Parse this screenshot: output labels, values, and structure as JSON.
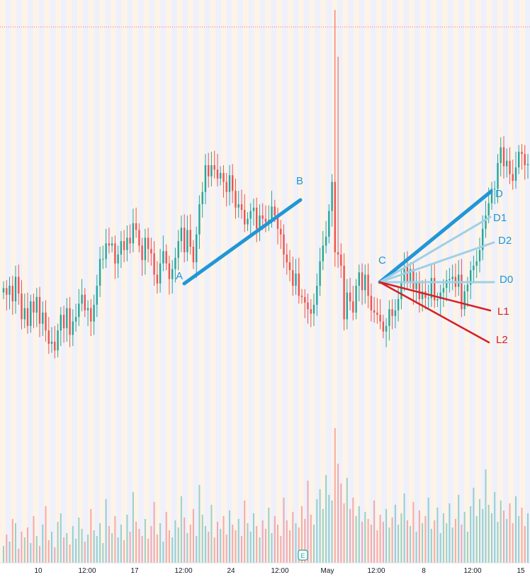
{
  "chart_data": {
    "type": "candlestick",
    "title": "",
    "xlabel": "",
    "ylabel": "",
    "x_ticks": [
      "10",
      "12:00",
      "17",
      "12:00",
      "24",
      "12:00",
      "May",
      "12:00",
      "8",
      "12:00",
      "15"
    ],
    "grid": true,
    "legend": "none",
    "earnings_marker": "E",
    "series": [
      {
        "values": [
          410,
          404,
          412,
          398,
          420,
          405,
          382,
          392,
          376,
          398,
          388,
          402,
          378,
          388,
          372,
          360,
          362,
          354,
          372,
          386,
          374,
          392,
          368,
          380,
          384,
          396,
          404,
          390,
          392,
          380,
          395,
          412,
          436,
          436,
          450,
          448,
          450,
          432,
          440,
          452,
          444,
          455,
          450,
          468,
          462,
          448,
          435,
          455,
          445,
          441,
          422,
          414,
          432,
          443,
          432,
          418,
          427,
          437,
          452,
          464,
          442,
          462,
          447,
          433,
          458,
          485,
          496,
          520,
          510,
          520,
          516,
          508,
          513,
          505,
          496,
          511,
          497,
          482,
          485,
          480,
          467,
          472,
          479,
          482,
          463,
          475,
          472,
          469,
          471,
          483,
          475,
          463,
          458,
          440,
          433,
          426,
          412,
          423,
          403,
          402,
          397,
          391,
          387,
          395,
          412,
          434,
          448,
          456,
          479,
          505,
          442,
          440,
          430,
          382,
          406,
          398,
          388,
          412,
          424,
          408,
          422,
          403,
          390,
          388,
          386,
          380,
          371,
          376,
          391,
          385,
          390,
          400,
          415,
          429,
          416,
          427,
          409,
          416,
          400,
          407,
          401,
          401,
          419,
          399,
          400,
          406,
          410,
          417,
          418,
          420,
          411,
          422,
          391,
          407,
          413,
          426,
          430,
          434,
          444,
          463,
          475,
          486,
          499,
          499,
          522,
          536,
          519,
          524,
          512,
          506,
          518,
          532,
          530,
          520,
          521
        ]
      },
      {
        "values": [
          0.12,
          0.2,
          0.15,
          0.31,
          0.28,
          0.1,
          0.22,
          0.18,
          0.25,
          0.14,
          0.33,
          0.19,
          0.12,
          0.27,
          0.4,
          0.16,
          0.22,
          0.11,
          0.29,
          0.35,
          0.18,
          0.21,
          0.13,
          0.26,
          0.17,
          0.32,
          0.24,
          0.15,
          0.2,
          0.38,
          0.23,
          0.19,
          0.28,
          0.14,
          0.45,
          0.26,
          0.21,
          0.33,
          0.18,
          0.27,
          0.16,
          0.34,
          0.22,
          0.5,
          0.29,
          0.24,
          0.19,
          0.31,
          0.17,
          0.26,
          0.43,
          0.2,
          0.28,
          0.15,
          0.36,
          0.23,
          0.18,
          0.3,
          0.25,
          0.47,
          0.32,
          0.21,
          0.27,
          0.38,
          0.19,
          0.55,
          0.34,
          0.26,
          0.22,
          0.41,
          0.18,
          0.29,
          0.24,
          0.33,
          0.2,
          0.37,
          0.27,
          0.23,
          0.31,
          0.19,
          0.44,
          0.28,
          0.22,
          0.35,
          0.26,
          0.18,
          0.3,
          0.24,
          0.39,
          0.21,
          0.33,
          0.27,
          0.19,
          0.46,
          0.3,
          0.23,
          0.36,
          0.28,
          0.25,
          0.4,
          0.31,
          0.58,
          0.34,
          0.27,
          0.45,
          0.52,
          0.38,
          0.62,
          0.48,
          0.44,
          0.95,
          0.7,
          0.56,
          0.42,
          0.6,
          0.38,
          0.46,
          0.33,
          0.4,
          0.29,
          0.36,
          0.31,
          0.27,
          0.44,
          0.23,
          0.34,
          0.29,
          0.38,
          0.25,
          0.32,
          0.41,
          0.27,
          0.35,
          0.49,
          0.3,
          0.26,
          0.43,
          0.22,
          0.37,
          0.28,
          0.33,
          0.46,
          0.24,
          0.3,
          0.39,
          0.21,
          0.35,
          0.28,
          0.42,
          0.25,
          0.31,
          0.48,
          0.27,
          0.36,
          0.22,
          0.4,
          0.53,
          0.33,
          0.45,
          0.38,
          0.66,
          0.41,
          0.35,
          0.5,
          0.29,
          0.44,
          0.37,
          0.31,
          0.42,
          0.28,
          0.47,
          0.33,
          0.39,
          0.26,
          0.35
        ]
      }
    ],
    "annotations": [
      {
        "label": "A",
        "x": 260,
        "y": 400,
        "color": "#2196d6"
      },
      {
        "label": "B",
        "x": 424,
        "y": 282,
        "color": "#2196d6"
      },
      {
        "label": "C",
        "x": 536,
        "y": 398,
        "color": "#2196d6"
      },
      {
        "label": "D",
        "x": 693,
        "y": 270,
        "color": "#2196d6"
      },
      {
        "label": "D1",
        "x": 692,
        "y": 306,
        "color": "#9fd0e6"
      },
      {
        "label": "D2",
        "x": 697,
        "y": 342,
        "color": "#9fd0e6"
      },
      {
        "label": "D0",
        "x": 697,
        "y": 398,
        "color": "#9fd0e6"
      },
      {
        "label": "L1",
        "x": 692,
        "y": 438,
        "color": "#d61f26"
      },
      {
        "label": "L2",
        "x": 690,
        "y": 483,
        "color": "#d61f26"
      }
    ],
    "trend_lines": [
      {
        "from": "A",
        "to": "B",
        "color": "#2196d6",
        "width": 5
      },
      {
        "from": "C",
        "to": "D",
        "color": "#2196d6",
        "width": 5
      },
      {
        "from": "C",
        "to": "D1",
        "color": "#9fd0e6",
        "width": 3
      },
      {
        "from": "C",
        "to": "D2",
        "color": "#9fd0e6",
        "width": 3
      },
      {
        "from": "C",
        "to": "D0",
        "color": "#9fd0e6",
        "width": 3
      },
      {
        "from": "C",
        "to": "L1",
        "color": "#d61f26",
        "width": 2.5
      },
      {
        "from": "C",
        "to": "L2",
        "color": "#d61f26",
        "width": 2.5
      }
    ],
    "colors": {
      "up": "#26a69a",
      "down": "#ef5350",
      "band_a": "#fdf3e7",
      "band_b": "#eef0fb",
      "dotted_level": "#ef5350"
    }
  }
}
